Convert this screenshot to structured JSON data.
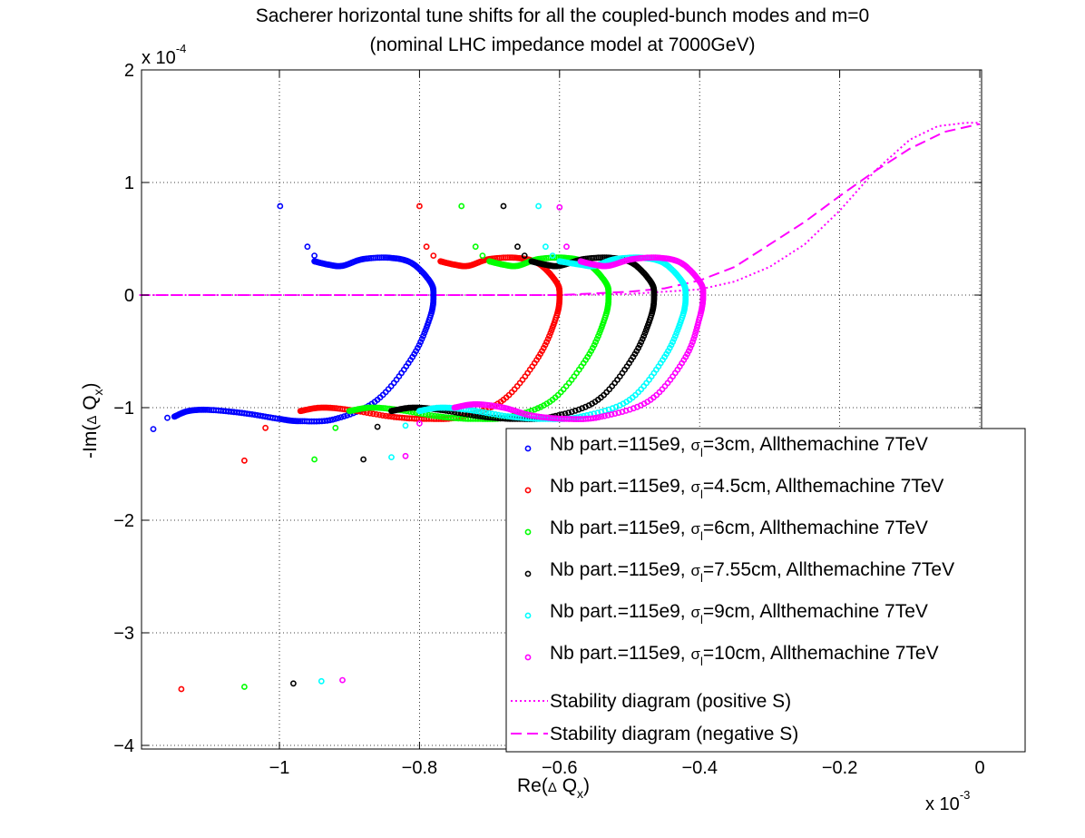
{
  "chart_data": {
    "type": "scatter",
    "title_lines": [
      "Sacherer horizontal tune shifts for all the coupled-bunch modes and m=0",
      "(nominal LHC impedance model at 7000GeV)"
    ],
    "xlabel": {
      "main": "Re(",
      "greek": "Δ",
      "var": " Q",
      "sub": "x",
      "close": ")"
    },
    "ylabel": {
      "main": "-Im(",
      "greek": "Δ",
      "var": " Q",
      "sub": "x",
      "close": ")"
    },
    "x_multiplier": {
      "base": "x 10",
      "exp": "-3"
    },
    "y_multiplier": {
      "base": "x 10",
      "exp": "-4"
    },
    "xlim": [
      -1.2,
      0.0
    ],
    "ylim": [
      -4,
      2
    ],
    "xticks": [
      -1,
      -0.8,
      -0.6,
      -0.4,
      -0.2,
      0
    ],
    "yticks": [
      -4,
      -3,
      -2,
      -1,
      0,
      1,
      2
    ],
    "xtick_labels": [
      "−1",
      "−0.8",
      "−0.6",
      "−0.4",
      "−0.2",
      "0"
    ],
    "ytick_labels": [
      "−4",
      "−3",
      "−2",
      "−1",
      "0",
      "1",
      "2"
    ],
    "grid": true,
    "legend_position": "bottom-right",
    "series": [
      {
        "label": {
          "pre": "Nb part.=115e9, ",
          "sigma": "σ",
          "sub": "l",
          "post": "=3cm, Allthemachine 7TeV"
        },
        "color": "#0000ff",
        "x0": -0.781,
        "curve": [
          [
            -1.15,
            -1.08
          ],
          [
            -1.13,
            -1.03
          ],
          [
            -1.1,
            -1.02
          ],
          [
            -1.05,
            -1.05
          ],
          [
            -1,
            -1.1
          ],
          [
            -0.97,
            -1.12
          ],
          [
            -0.92,
            -1.1
          ],
          [
            -0.86,
            -0.93
          ],
          [
            -0.81,
            -0.55
          ],
          [
            -0.785,
            -0.2
          ],
          [
            -0.78,
            0.0
          ],
          [
            -0.785,
            0.12
          ],
          [
            -0.81,
            0.28
          ],
          [
            -0.84,
            0.33
          ],
          [
            -0.88,
            0.32
          ],
          [
            -0.91,
            0.26
          ],
          [
            -0.93,
            0.27
          ],
          [
            -0.95,
            0.3
          ]
        ],
        "isolated": [
          [
            -1.18,
            -1.19
          ],
          [
            -1.16,
            -1.09
          ],
          [
            -0.999,
            0.79
          ],
          [
            -0.96,
            0.43
          ],
          [
            -0.95,
            0.35
          ]
        ]
      },
      {
        "label": {
          "pre": "Nb part.=115e9, ",
          "sigma": "σ",
          "sub": "l",
          "post": "=4.5cm, Allthemachine 7TeV"
        },
        "color": "#ff0000",
        "x0": -0.6,
        "curve": [
          [
            -0.97,
            -1.03
          ],
          [
            -0.94,
            -1.0
          ],
          [
            -0.9,
            -1.02
          ],
          [
            -0.84,
            -1.08
          ],
          [
            -0.79,
            -1.1
          ],
          [
            -0.74,
            -1.08
          ],
          [
            -0.68,
            -0.93
          ],
          [
            -0.63,
            -0.55
          ],
          [
            -0.605,
            -0.2
          ],
          [
            -0.6,
            0.0
          ],
          [
            -0.605,
            0.12
          ],
          [
            -0.63,
            0.28
          ],
          [
            -0.66,
            0.33
          ],
          [
            -0.7,
            0.32
          ],
          [
            -0.73,
            0.26
          ],
          [
            -0.75,
            0.27
          ],
          [
            -0.77,
            0.3
          ]
        ],
        "isolated": [
          [
            -1.14,
            -3.5
          ],
          [
            -1.05,
            -1.47
          ],
          [
            -1.02,
            -1.18
          ],
          [
            -0.8,
            0.79
          ],
          [
            -0.79,
            0.43
          ],
          [
            -0.78,
            0.35
          ]
        ]
      },
      {
        "label": {
          "pre": "Nb part.=115e9, ",
          "sigma": "σ",
          "sub": "l",
          "post": "=6cm, Allthemachine 7TeV"
        },
        "color": "#00ff00",
        "x0": -0.53,
        "curve": [
          [
            -0.9,
            -1.03
          ],
          [
            -0.87,
            -1.0
          ],
          [
            -0.83,
            -1.02
          ],
          [
            -0.77,
            -1.08
          ],
          [
            -0.72,
            -1.1
          ],
          [
            -0.67,
            -1.08
          ],
          [
            -0.61,
            -0.93
          ],
          [
            -0.56,
            -0.55
          ],
          [
            -0.535,
            -0.2
          ],
          [
            -0.53,
            0.0
          ],
          [
            -0.535,
            0.12
          ],
          [
            -0.56,
            0.28
          ],
          [
            -0.59,
            0.33
          ],
          [
            -0.63,
            0.32
          ],
          [
            -0.66,
            0.26
          ],
          [
            -0.68,
            0.27
          ],
          [
            -0.7,
            0.3
          ]
        ],
        "isolated": [
          [
            -1.05,
            -3.48
          ],
          [
            -0.95,
            -1.46
          ],
          [
            -0.92,
            -1.18
          ],
          [
            -0.74,
            0.79
          ],
          [
            -0.72,
            0.43
          ],
          [
            -0.71,
            0.35
          ]
        ]
      },
      {
        "label": {
          "pre": "Nb part.=115e9, ",
          "sigma": "σ",
          "sub": "l",
          "post": "=7.55cm, Allthemachine 7TeV"
        },
        "color": "#000000",
        "x0": -0.465,
        "curve": [
          [
            -0.84,
            -1.03
          ],
          [
            -0.81,
            -1.0
          ],
          [
            -0.77,
            -1.02
          ],
          [
            -0.71,
            -1.08
          ],
          [
            -0.66,
            -1.1
          ],
          [
            -0.61,
            -1.08
          ],
          [
            -0.545,
            -0.93
          ],
          [
            -0.495,
            -0.55
          ],
          [
            -0.47,
            -0.2
          ],
          [
            -0.465,
            0.0
          ],
          [
            -0.47,
            0.12
          ],
          [
            -0.495,
            0.28
          ],
          [
            -0.525,
            0.33
          ],
          [
            -0.565,
            0.32
          ],
          [
            -0.6,
            0.26
          ],
          [
            -0.62,
            0.27
          ],
          [
            -0.64,
            0.3
          ]
        ],
        "isolated": [
          [
            -0.98,
            -3.45
          ],
          [
            -0.88,
            -1.46
          ],
          [
            -0.86,
            -1.17
          ],
          [
            -0.68,
            0.79
          ],
          [
            -0.66,
            0.43
          ],
          [
            -0.65,
            0.35
          ]
        ]
      },
      {
        "label": {
          "pre": "Nb part.=115e9, ",
          "sigma": "σ",
          "sub": "l",
          "post": "=9cm, Allthemachine 7TeV"
        },
        "color": "#00ffff",
        "x0": -0.42,
        "curve": [
          [
            -0.8,
            -1.03
          ],
          [
            -0.77,
            -1.0
          ],
          [
            -0.73,
            -1.02
          ],
          [
            -0.67,
            -1.08
          ],
          [
            -0.62,
            -1.1
          ],
          [
            -0.57,
            -1.08
          ],
          [
            -0.5,
            -0.93
          ],
          [
            -0.45,
            -0.55
          ],
          [
            -0.425,
            -0.2
          ],
          [
            -0.42,
            0.0
          ],
          [
            -0.425,
            0.12
          ],
          [
            -0.45,
            0.28
          ],
          [
            -0.48,
            0.33
          ],
          [
            -0.52,
            0.32
          ],
          [
            -0.55,
            0.26
          ],
          [
            -0.57,
            0.27
          ],
          [
            -0.6,
            0.3
          ]
        ],
        "isolated": [
          [
            -0.94,
            -3.43
          ],
          [
            -0.84,
            -1.44
          ],
          [
            -0.82,
            -1.16
          ],
          [
            -0.63,
            0.79
          ],
          [
            -0.62,
            0.43
          ],
          [
            -0.61,
            0.35
          ]
        ]
      },
      {
        "label": {
          "pre": "Nb part.=115e9, ",
          "sigma": "σ",
          "sub": "l",
          "post": "=10cm, Allthemachine 7TeV"
        },
        "color": "#ff00ff",
        "x0": -0.395,
        "curve": [
          [
            -0.75,
            -1.0
          ],
          [
            -0.72,
            -0.97
          ],
          [
            -0.68,
            -1.0
          ],
          [
            -0.64,
            -1.07
          ],
          [
            -0.59,
            -1.1
          ],
          [
            -0.54,
            -1.08
          ],
          [
            -0.47,
            -0.93
          ],
          [
            -0.42,
            -0.55
          ],
          [
            -0.4,
            -0.2
          ],
          [
            -0.395,
            0.0
          ],
          [
            -0.4,
            0.12
          ],
          [
            -0.425,
            0.28
          ],
          [
            -0.455,
            0.33
          ],
          [
            -0.495,
            0.32
          ],
          [
            -0.53,
            0.26
          ],
          [
            -0.55,
            0.27
          ],
          [
            -0.57,
            0.3
          ]
        ],
        "isolated": [
          [
            -0.91,
            -3.42
          ],
          [
            -0.82,
            -1.43
          ],
          [
            -0.8,
            -1.14
          ],
          [
            -0.6,
            0.78
          ],
          [
            -0.59,
            0.43
          ]
        ]
      }
    ],
    "stability_lines": [
      {
        "label": "Stability diagram (positive S)",
        "color": "#ff00ff",
        "dash": "2,3",
        "points": [
          [
            -1.2,
            0.0
          ],
          [
            -0.6,
            0.0
          ],
          [
            -0.5,
            0.01
          ],
          [
            -0.45,
            0.03
          ],
          [
            -0.4,
            0.05
          ],
          [
            -0.35,
            0.12
          ],
          [
            -0.3,
            0.25
          ],
          [
            -0.25,
            0.45
          ],
          [
            -0.2,
            0.75
          ],
          [
            -0.15,
            1.1
          ],
          [
            -0.1,
            1.38
          ],
          [
            -0.06,
            1.5
          ],
          [
            -0.02,
            1.53
          ],
          [
            0.0,
            1.53
          ]
        ]
      },
      {
        "label": "Stability diagram (negative S)",
        "color": "#ff00ff",
        "dash": "12,6",
        "points": [
          [
            -1.2,
            0.0
          ],
          [
            -0.6,
            0.0
          ],
          [
            -0.5,
            0.03
          ],
          [
            -0.45,
            0.06
          ],
          [
            -0.4,
            0.13
          ],
          [
            -0.35,
            0.25
          ],
          [
            -0.3,
            0.45
          ],
          [
            -0.25,
            0.65
          ],
          [
            -0.2,
            0.88
          ],
          [
            -0.15,
            1.1
          ],
          [
            -0.1,
            1.3
          ],
          [
            -0.05,
            1.45
          ],
          [
            0.0,
            1.52
          ]
        ]
      }
    ]
  }
}
